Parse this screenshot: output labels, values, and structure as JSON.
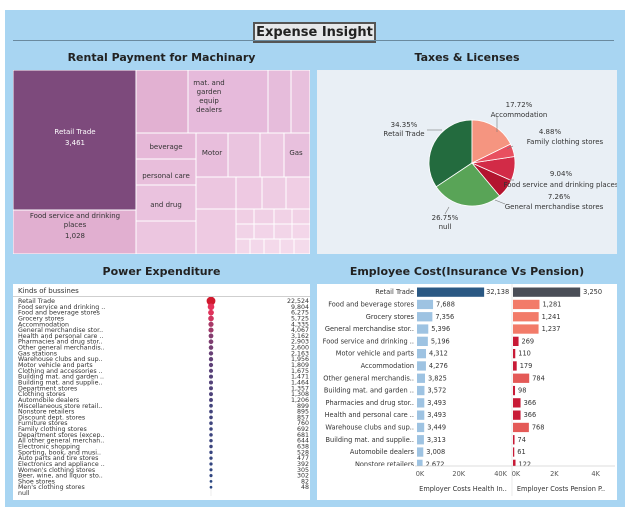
{
  "dashboard": {
    "title": "Expense Insight"
  },
  "rental": {
    "title": "Rental Payment for Machinary",
    "chart_data": {
      "type": "treemap",
      "title": "Rental Payment for Machinary",
      "items": [
        {
          "label": "Retail Trade",
          "value": 3461,
          "value_label": "3,461"
        },
        {
          "label": "Food service and drinking places",
          "value": 1028,
          "value_label": "1,028"
        },
        {
          "label": "beverage",
          "value": null
        },
        {
          "label": "personal care",
          "value": null
        },
        {
          "label": "and drug",
          "value": null
        },
        {
          "label": "mat. and garden equip dealers",
          "value": null
        },
        {
          "label": "Motor",
          "value": null
        },
        {
          "label": "Gas",
          "value": null
        }
      ]
    }
  },
  "taxes": {
    "title": "Taxes & Licenses",
    "chart_data": {
      "type": "pie",
      "title": "Taxes & Licenses",
      "slices": [
        {
          "label": "Retail Trade",
          "percent": 34.35,
          "percent_label": "34.35%",
          "color": "#236b3e"
        },
        {
          "label": "null",
          "percent": 26.75,
          "percent_label": "26.75%",
          "color": "#59a457"
        },
        {
          "label": "General merchandise stores",
          "percent": 7.26,
          "percent_label": "7.26%",
          "color": "#b3142f"
        },
        {
          "label": "Food service and drinking places",
          "percent": 9.04,
          "percent_label": "9.04%",
          "color": "#d22b47"
        },
        {
          "label": "Family clothing stores",
          "percent": 4.88,
          "percent_label": "4.88%",
          "color": "#e84f5f"
        },
        {
          "label": "Accommodation",
          "percent": 17.72,
          "percent_label": "17.72%",
          "color": "#f59580"
        }
      ]
    }
  },
  "power": {
    "title": "Power Expenditure",
    "chart_data": {
      "type": "scatter",
      "title": "Power Expenditure",
      "ylabel": "Kinds of bussines",
      "rows": [
        {
          "label": "Retail Trade",
          "value": 22524,
          "value_label": "22,524"
        },
        {
          "label": "Food service and drinking ..",
          "value": 9804,
          "value_label": "9,804"
        },
        {
          "label": "Food and beverage stores",
          "value": 6275,
          "value_label": "6,275"
        },
        {
          "label": "Grocery stores",
          "value": 5725,
          "value_label": "5,725"
        },
        {
          "label": "Accommodation",
          "value": 4335,
          "value_label": "4,335"
        },
        {
          "label": "General merchandise stor..",
          "value": 4067,
          "value_label": "4,067"
        },
        {
          "label": "Health and personal care ..",
          "value": 3162,
          "value_label": "3,162"
        },
        {
          "label": "Pharmacies and drug stor..",
          "value": 2903,
          "value_label": "2,903"
        },
        {
          "label": "Other general merchandis..",
          "value": 2600,
          "value_label": "2,600"
        },
        {
          "label": "Gas stations",
          "value": 2163,
          "value_label": "2,163"
        },
        {
          "label": "Warehouse clubs and sup..",
          "value": 1956,
          "value_label": "1,956"
        },
        {
          "label": "Motor vehicle and parts",
          "value": 1809,
          "value_label": "1,809"
        },
        {
          "label": "Clothing and accessories ..",
          "value": 1675,
          "value_label": "1,675"
        },
        {
          "label": "Building mat. and garden ..",
          "value": 1471,
          "value_label": "1,471"
        },
        {
          "label": "Building mat. and supplie..",
          "value": 1464,
          "value_label": "1,464"
        },
        {
          "label": "Department stores",
          "value": 1357,
          "value_label": "1,357"
        },
        {
          "label": "Clothing stores",
          "value": 1308,
          "value_label": "1,308"
        },
        {
          "label": "Automobile dealers",
          "value": 1206,
          "value_label": "1,206"
        },
        {
          "label": "Miscellaneous store retail..",
          "value": 899,
          "value_label": "899"
        },
        {
          "label": "Nonstore retailers",
          "value": 895,
          "value_label": "895"
        },
        {
          "label": "Discount dept. stores",
          "value": 857,
          "value_label": "857"
        },
        {
          "label": "Furniture stores",
          "value": 760,
          "value_label": "760"
        },
        {
          "label": "Family clothing stores",
          "value": 692,
          "value_label": "692"
        },
        {
          "label": "Department stores (excep..",
          "value": 681,
          "value_label": "681"
        },
        {
          "label": "All other general merchan..",
          "value": 644,
          "value_label": "644"
        },
        {
          "label": "Electronic shopping",
          "value": 638,
          "value_label": "638"
        },
        {
          "label": "Sporting, book, and musi..",
          "value": 528,
          "value_label": "528"
        },
        {
          "label": "Auto parts and tire stores",
          "value": 477,
          "value_label": "477"
        },
        {
          "label": "Electronics and appliance ..",
          "value": 392,
          "value_label": "392"
        },
        {
          "label": "Women's clothing stores",
          "value": 305,
          "value_label": "305"
        },
        {
          "label": "Beer, wine, and liquor sto..",
          "value": 302,
          "value_label": "302"
        },
        {
          "label": "Shoe stores",
          "value": 82,
          "value_label": "82"
        },
        {
          "label": "Men's clothing stores",
          "value": 48,
          "value_label": "48"
        },
        {
          "label": "null",
          "value": null,
          "value_label": ""
        }
      ]
    }
  },
  "employee": {
    "title": "Employee Cost(Insurance Vs Pension)",
    "chart_data": {
      "type": "bar",
      "title": "Employee Cost(Insurance Vs Pension)",
      "categories": [
        "Retail Trade",
        "Food and beverage stores",
        "Grocery stores",
        "General merchandise stor..",
        "Food service and drinking ..",
        "Motor vehicle and parts",
        "Accommodation",
        "Other general merchandis..",
        "Building mat. and garden ..",
        "Pharmacies and drug stor..",
        "Health and personal care ..",
        "Warehouse clubs and sup..",
        "Building mat. and supplie..",
        "Automobile dealers",
        "Nonstore retailers"
      ],
      "series": [
        {
          "name": "Employer Costs Health In..",
          "values": [
            32138,
            7688,
            7356,
            5396,
            5196,
            4312,
            4276,
            3825,
            3572,
            3493,
            3493,
            3449,
            3313,
            3008,
            2672
          ],
          "value_labels": [
            "32,138",
            "7,688",
            "7,356",
            "5,396",
            "5,196",
            "4,312",
            "4,276",
            "3,825",
            "3,572",
            "3,493",
            "3,493",
            "3,449",
            "3,313",
            "3,008",
            "2,672"
          ],
          "xlim": [
            0,
            45000
          ],
          "ticks": [
            0,
            20000,
            40000
          ],
          "tick_labels": [
            "0K",
            "20K",
            "40K"
          ]
        },
        {
          "name": "Employer Costs Pension P..",
          "values": [
            3250,
            1281,
            1241,
            1237,
            269,
            110,
            179,
            784,
            98,
            366,
            366,
            768,
            74,
            61,
            122
          ],
          "value_labels": [
            "3,250",
            "1,281",
            "1,241",
            "1,237",
            "269",
            "110",
            "179",
            "784",
            "98",
            "366",
            "366",
            "768",
            "74",
            "61",
            "122"
          ],
          "xlim": [
            0,
            4500
          ],
          "ticks": [
            0,
            2000,
            4000
          ],
          "tick_labels": [
            "0K",
            "2K",
            "4K"
          ]
        }
      ]
    }
  }
}
